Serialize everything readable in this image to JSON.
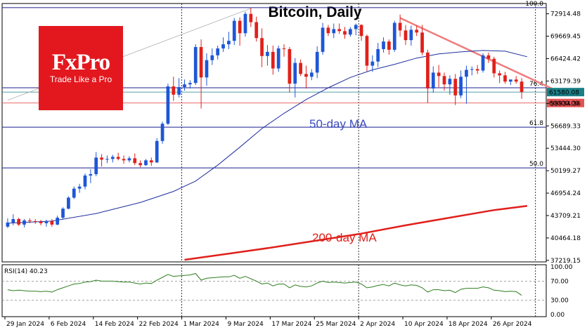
{
  "chart_data": {
    "type": "candlestick",
    "title": "Bitcoin, Daily",
    "price_axis": {
      "ticks": [
        "72914.48",
        "69669.45",
        "66424.42",
        "63179.39",
        "59934.36",
        "56689.33",
        "53444.30",
        "50199.27",
        "46954.24",
        "43709.21",
        "40464.18",
        "37219.15"
      ],
      "tick_values": [
        72914.48,
        69669.45,
        66424.42,
        63179.39,
        59934.36,
        56689.33,
        53444.3,
        50199.27,
        46954.24,
        43709.21,
        40464.18,
        37219.15
      ],
      "ylim": [
        37000,
        74400
      ]
    },
    "date_axis": {
      "labels": [
        "29 Jan 2024",
        "6 Feb 2024",
        "14 Feb 2024",
        "22 Feb 2024",
        "1 Mar 2024",
        "9 Mar 2024",
        "17 Mar 2024",
        "25 Mar 2024",
        "2 Apr 2024",
        "10 Apr 2024",
        "18 Apr 2024",
        "26 Apr 2024"
      ],
      "label_bar_index": [
        0,
        8,
        16,
        24,
        32,
        40,
        48,
        56,
        64,
        72,
        80,
        88
      ]
    },
    "fib_levels": [
      {
        "label": "100.0",
        "value": 73800
      },
      {
        "label": "76.4",
        "value": 62200
      },
      {
        "label": "61.8",
        "value": 56500
      },
      {
        "label": "50.0",
        "value": 50600
      }
    ],
    "price_tags": [
      {
        "label": "61580.08",
        "value": 61580.08,
        "color": "#1a7f86"
      },
      {
        "label": "60000.00",
        "value": 60000.0,
        "color": "#e55353"
      }
    ],
    "candles": [
      {
        "o": 42100,
        "h": 43300,
        "l": 41900,
        "c": 42700
      },
      {
        "o": 42700,
        "h": 43900,
        "l": 42300,
        "c": 43200
      },
      {
        "o": 43200,
        "h": 43400,
        "l": 42200,
        "c": 42400
      },
      {
        "o": 42400,
        "h": 43200,
        "l": 42000,
        "c": 43000
      },
      {
        "o": 43000,
        "h": 43300,
        "l": 42600,
        "c": 42900
      },
      {
        "o": 42900,
        "h": 43200,
        "l": 42500,
        "c": 42800
      },
      {
        "o": 42800,
        "h": 43100,
        "l": 42300,
        "c": 42600
      },
      {
        "o": 42600,
        "h": 43100,
        "l": 42100,
        "c": 42900
      },
      {
        "o": 42900,
        "h": 43200,
        "l": 42100,
        "c": 42400
      },
      {
        "o": 42400,
        "h": 43700,
        "l": 42300,
        "c": 43400
      },
      {
        "o": 43400,
        "h": 44900,
        "l": 43200,
        "c": 44700
      },
      {
        "o": 44700,
        "h": 46500,
        "l": 44600,
        "c": 46300
      },
      {
        "o": 46300,
        "h": 47900,
        "l": 46100,
        "c": 47600
      },
      {
        "o": 47600,
        "h": 48300,
        "l": 47000,
        "c": 47900
      },
      {
        "o": 47900,
        "h": 49800,
        "l": 47500,
        "c": 49500
      },
      {
        "o": 49500,
        "h": 50400,
        "l": 48400,
        "c": 49700
      },
      {
        "o": 49700,
        "h": 52900,
        "l": 49400,
        "c": 52100
      },
      {
        "o": 52100,
        "h": 52600,
        "l": 50800,
        "c": 51800
      },
      {
        "o": 51800,
        "h": 52400,
        "l": 51300,
        "c": 51900
      },
      {
        "o": 51900,
        "h": 52500,
        "l": 51400,
        "c": 52200
      },
      {
        "o": 52200,
        "h": 52800,
        "l": 51700,
        "c": 51900
      },
      {
        "o": 51900,
        "h": 52400,
        "l": 51200,
        "c": 51700
      },
      {
        "o": 51700,
        "h": 52300,
        "l": 51400,
        "c": 52000
      },
      {
        "o": 52000,
        "h": 52700,
        "l": 51000,
        "c": 51300
      },
      {
        "o": 51300,
        "h": 51700,
        "l": 50700,
        "c": 51000
      },
      {
        "o": 51000,
        "h": 51900,
        "l": 50900,
        "c": 51700
      },
      {
        "o": 51700,
        "h": 52100,
        "l": 50900,
        "c": 51400
      },
      {
        "o": 51400,
        "h": 54900,
        "l": 51300,
        "c": 54500
      },
      {
        "o": 54500,
        "h": 57300,
        "l": 54100,
        "c": 57000
      },
      {
        "o": 57000,
        "h": 62800,
        "l": 56800,
        "c": 62400
      },
      {
        "o": 62400,
        "h": 63800,
        "l": 60300,
        "c": 61200
      },
      {
        "o": 61200,
        "h": 63600,
        "l": 60800,
        "c": 62300
      },
      {
        "o": 62300,
        "h": 63400,
        "l": 61800,
        "c": 62700
      },
      {
        "o": 62700,
        "h": 63300,
        "l": 62100,
        "c": 62900
      },
      {
        "o": 62900,
        "h": 68500,
        "l": 62600,
        "c": 68100
      },
      {
        "o": 68100,
        "h": 69200,
        "l": 59200,
        "c": 63700
      },
      {
        "o": 63700,
        "h": 67200,
        "l": 62500,
        "c": 66200
      },
      {
        "o": 66200,
        "h": 67900,
        "l": 65500,
        "c": 66900
      },
      {
        "o": 66900,
        "h": 68300,
        "l": 66300,
        "c": 67900
      },
      {
        "o": 67900,
        "h": 69500,
        "l": 67400,
        "c": 68500
      },
      {
        "o": 68500,
        "h": 70300,
        "l": 67800,
        "c": 69000
      },
      {
        "o": 69000,
        "h": 72300,
        "l": 68400,
        "c": 71900
      },
      {
        "o": 71900,
        "h": 72400,
        "l": 68300,
        "c": 70100
      },
      {
        "o": 70100,
        "h": 73200,
        "l": 69600,
        "c": 72900
      },
      {
        "o": 72900,
        "h": 73800,
        "l": 71000,
        "c": 71700
      },
      {
        "o": 71700,
        "h": 72500,
        "l": 68900,
        "c": 69400
      },
      {
        "o": 69400,
        "h": 70800,
        "l": 65200,
        "c": 66800
      },
      {
        "o": 66800,
        "h": 68400,
        "l": 65400,
        "c": 67400
      },
      {
        "o": 67400,
        "h": 68300,
        "l": 64100,
        "c": 65000
      },
      {
        "o": 65000,
        "h": 68300,
        "l": 64500,
        "c": 67900
      },
      {
        "o": 67900,
        "h": 68500,
        "l": 66700,
        "c": 67800
      },
      {
        "o": 67800,
        "h": 68100,
        "l": 61500,
        "c": 62800
      },
      {
        "o": 62800,
        "h": 66500,
        "l": 60800,
        "c": 65800
      },
      {
        "o": 65800,
        "h": 66300,
        "l": 63900,
        "c": 64200
      },
      {
        "o": 64200,
        "h": 65400,
        "l": 62100,
        "c": 63800
      },
      {
        "o": 63800,
        "h": 64900,
        "l": 63300,
        "c": 64400
      },
      {
        "o": 64400,
        "h": 68200,
        "l": 63600,
        "c": 67400
      },
      {
        "o": 67400,
        "h": 71600,
        "l": 67000,
        "c": 70900
      },
      {
        "o": 70900,
        "h": 71300,
        "l": 69700,
        "c": 70100
      },
      {
        "o": 70100,
        "h": 71500,
        "l": 69400,
        "c": 70700
      },
      {
        "o": 70700,
        "h": 71500,
        "l": 70000,
        "c": 70400
      },
      {
        "o": 70400,
        "h": 71000,
        "l": 69300,
        "c": 69900
      },
      {
        "o": 69900,
        "h": 71000,
        "l": 69600,
        "c": 70700
      },
      {
        "o": 70700,
        "h": 71500,
        "l": 69800,
        "c": 71300
      },
      {
        "o": 71300,
        "h": 71400,
        "l": 69000,
        "c": 69700
      },
      {
        "o": 69700,
        "h": 69900,
        "l": 64600,
        "c": 65400
      },
      {
        "o": 65400,
        "h": 66900,
        "l": 64500,
        "c": 66000
      },
      {
        "o": 66000,
        "h": 68700,
        "l": 65200,
        "c": 67800
      },
      {
        "o": 67800,
        "h": 69500,
        "l": 67300,
        "c": 68900
      },
      {
        "o": 68900,
        "h": 69200,
        "l": 67000,
        "c": 67700
      },
      {
        "o": 67700,
        "h": 71900,
        "l": 67400,
        "c": 71600
      },
      {
        "o": 71600,
        "h": 72800,
        "l": 69600,
        "c": 70500
      },
      {
        "o": 70500,
        "h": 71300,
        "l": 68400,
        "c": 69100
      },
      {
        "o": 69100,
        "h": 71200,
        "l": 68300,
        "c": 70600
      },
      {
        "o": 70600,
        "h": 71200,
        "l": 69700,
        "c": 70200
      },
      {
        "o": 70200,
        "h": 71300,
        "l": 66900,
        "c": 67300
      },
      {
        "o": 67300,
        "h": 67700,
        "l": 60000,
        "c": 62100
      },
      {
        "o": 62100,
        "h": 65300,
        "l": 61500,
        "c": 64400
      },
      {
        "o": 64400,
        "h": 65500,
        "l": 62300,
        "c": 63900
      },
      {
        "o": 63900,
        "h": 64400,
        "l": 61800,
        "c": 62700
      },
      {
        "o": 62700,
        "h": 64000,
        "l": 61200,
        "c": 63500
      },
      {
        "o": 63500,
        "h": 64200,
        "l": 59700,
        "c": 61100
      },
      {
        "o": 61100,
        "h": 64700,
        "l": 60700,
        "c": 63800
      },
      {
        "o": 63800,
        "h": 65400,
        "l": 59900,
        "c": 64800
      },
      {
        "o": 64800,
        "h": 65300,
        "l": 64000,
        "c": 64900
      },
      {
        "o": 64900,
        "h": 65500,
        "l": 64200,
        "c": 64700
      },
      {
        "o": 64700,
        "h": 67200,
        "l": 64400,
        "c": 66900
      },
      {
        "o": 66900,
        "h": 67300,
        "l": 65800,
        "c": 66400
      },
      {
        "o": 66400,
        "h": 66700,
        "l": 63700,
        "c": 64300
      },
      {
        "o": 64300,
        "h": 64700,
        "l": 62900,
        "c": 64000
      },
      {
        "o": 64000,
        "h": 64500,
        "l": 62800,
        "c": 63100
      },
      {
        "o": 63100,
        "h": 63400,
        "l": 62600,
        "c": 63400
      },
      {
        "o": 63400,
        "h": 63900,
        "l": 62800,
        "c": 63100
      },
      {
        "o": 63100,
        "h": 63600,
        "l": 60600,
        "c": 61580
      }
    ],
    "ma50": {
      "label": "50-day MA",
      "color": "#1f2d9e",
      "points": [
        [
          0,
          42600
        ],
        [
          8,
          42900
        ],
        [
          16,
          44000
        ],
        [
          24,
          45600
        ],
        [
          30,
          47200
        ],
        [
          34,
          48700
        ],
        [
          38,
          51000
        ],
        [
          42,
          53600
        ],
        [
          46,
          56300
        ],
        [
          50,
          58500
        ],
        [
          54,
          60500
        ],
        [
          58,
          62200
        ],
        [
          62,
          63700
        ],
        [
          66,
          64800
        ],
        [
          70,
          65600
        ],
        [
          74,
          66500
        ],
        [
          78,
          67100
        ],
        [
          82,
          67400
        ],
        [
          86,
          67600
        ],
        [
          90,
          67500
        ],
        [
          94,
          66700
        ]
      ]
    },
    "ma200": {
      "label": "200-day MA",
      "color": "#e0201b",
      "points": [
        [
          32,
          37300
        ],
        [
          40,
          38200
        ],
        [
          48,
          39100
        ],
        [
          56,
          40100
        ],
        [
          64,
          41100
        ],
        [
          72,
          42300
        ],
        [
          80,
          43400
        ],
        [
          88,
          44500
        ],
        [
          94,
          45100
        ]
      ]
    },
    "trendlines": [
      {
        "from": [
          0,
          60400
        ],
        "to": [
          44,
          73700
        ],
        "color": "#b0b0b0"
      },
      {
        "from": [
          71,
          72300
        ],
        "to": [
          99,
          61900
        ],
        "color": "#f07b7b"
      }
    ],
    "rsi": {
      "label": "RSI(14) 40.23",
      "ticks": [
        "100.00",
        "70.00",
        "30.00",
        "0.00"
      ],
      "tick_values": [
        100,
        70,
        30,
        0
      ],
      "values": [
        52,
        50,
        51,
        50,
        49,
        49,
        48,
        49,
        47,
        52,
        56,
        60,
        64,
        65,
        68,
        69,
        72,
        70,
        70,
        70,
        69,
        68,
        68,
        66,
        64,
        66,
        65,
        72,
        78,
        84,
        80,
        81,
        82,
        83,
        86,
        72,
        76,
        77,
        78,
        79,
        79,
        82,
        76,
        80,
        75,
        70,
        64,
        66,
        60,
        64,
        64,
        56,
        62,
        59,
        58,
        60,
        66,
        70,
        67,
        68,
        67,
        66,
        67,
        68,
        64,
        56,
        58,
        61,
        63,
        60,
        66,
        62,
        60,
        62,
        61,
        56,
        47,
        52,
        52,
        50,
        51,
        46,
        53,
        55,
        55,
        55,
        58,
        56,
        51,
        50,
        48,
        49,
        48,
        40.23
      ]
    }
  }
}
